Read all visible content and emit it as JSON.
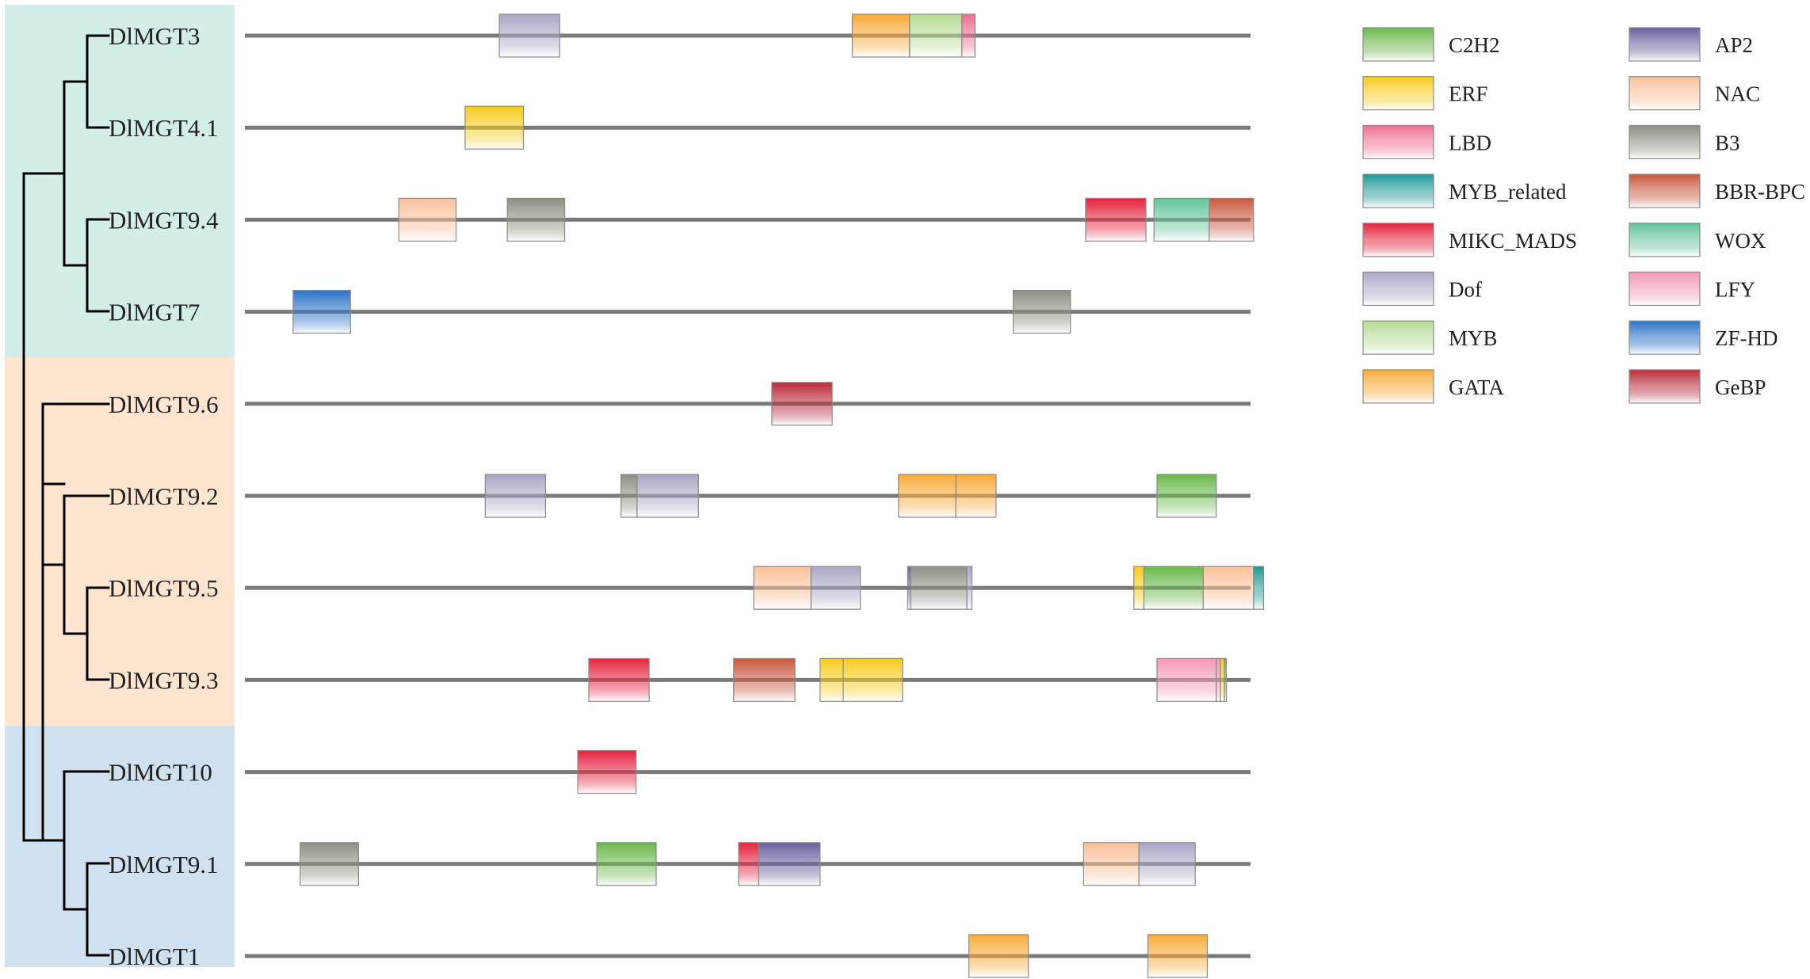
{
  "groups": [
    {
      "id": "group-1",
      "color": "#d3ede8",
      "genes": [
        0,
        1,
        2,
        3
      ]
    },
    {
      "id": "group-2",
      "color": "#fde5cf",
      "genes": [
        4,
        5,
        6,
        7
      ]
    },
    {
      "id": "group-3",
      "color": "#cfe0ee",
      "genes": [
        8,
        9,
        10
      ]
    }
  ],
  "genes": [
    {
      "name": "DlMGT3",
      "domains": [
        {
          "type": "Dof",
          "start": 0.253,
          "end": 0.313
        },
        {
          "type": "GATA",
          "start": 0.604,
          "end": 0.661
        },
        {
          "type": "MYB",
          "start": 0.661,
          "end": 0.713
        },
        {
          "type": "LBD",
          "start": 0.713,
          "end": 0.726
        }
      ]
    },
    {
      "name": "DlMGT4.1",
      "domains": [
        {
          "type": "ERF",
          "start": 0.219,
          "end": 0.277
        }
      ]
    },
    {
      "name": "DlMGT9.4",
      "domains": [
        {
          "type": "NAC",
          "start": 0.153,
          "end": 0.21
        },
        {
          "type": "B3",
          "start": 0.261,
          "end": 0.318
        },
        {
          "type": "MIKC_MADS",
          "start": 0.836,
          "end": 0.896
        },
        {
          "type": "WOX",
          "start": 0.904,
          "end": 0.959
        },
        {
          "type": "BBR-BPC",
          "start": 0.959,
          "end": 1.003
        }
      ]
    },
    {
      "name": "DlMGT7",
      "domains": [
        {
          "type": "ZF-HD",
          "start": 0.048,
          "end": 0.105
        },
        {
          "type": "B3",
          "start": 0.764,
          "end": 0.821
        }
      ]
    },
    {
      "name": "DlMGT9.6",
      "domains": [
        {
          "type": "GeBP",
          "start": 0.524,
          "end": 0.584
        }
      ]
    },
    {
      "name": "DlMGT9.2",
      "domains": [
        {
          "type": "Dof",
          "start": 0.239,
          "end": 0.299
        },
        {
          "type": "B3",
          "start": 0.374,
          "end": 0.39
        },
        {
          "type": "Dof",
          "start": 0.39,
          "end": 0.451
        },
        {
          "type": "GATA",
          "start": 0.65,
          "end": 0.707
        },
        {
          "type": "GATA",
          "start": 0.707,
          "end": 0.747
        },
        {
          "type": "C2H2",
          "start": 0.907,
          "end": 0.966
        }
      ]
    },
    {
      "name": "DlMGT9.5",
      "domains": [
        {
          "type": "NAC",
          "start": 0.506,
          "end": 0.563
        },
        {
          "type": "Dof",
          "start": 0.563,
          "end": 0.612
        },
        {
          "type": "AP2",
          "start": 0.659,
          "end": 0.662
        },
        {
          "type": "B3",
          "start": 0.662,
          "end": 0.718
        },
        {
          "type": "Dof",
          "start": 0.718,
          "end": 0.723
        },
        {
          "type": "ERF",
          "start": 0.884,
          "end": 0.894
        },
        {
          "type": "C2H2",
          "start": 0.894,
          "end": 0.953
        },
        {
          "type": "NAC",
          "start": 0.953,
          "end": 1.003
        },
        {
          "type": "MYB_related",
          "start": 1.003,
          "end": 1.013
        }
      ]
    },
    {
      "name": "DlMGT9.3",
      "domains": [
        {
          "type": "MIKC_MADS",
          "start": 0.342,
          "end": 0.402
        },
        {
          "type": "BBR-BPC",
          "start": 0.486,
          "end": 0.547
        },
        {
          "type": "ERF",
          "start": 0.572,
          "end": 0.595
        },
        {
          "type": "ERF",
          "start": 0.595,
          "end": 0.654
        },
        {
          "type": "LFY",
          "start": 0.907,
          "end": 0.966
        },
        {
          "type": "LFY",
          "start": 0.966,
          "end": 0.97
        },
        {
          "type": "ERF",
          "start": 0.97,
          "end": 0.974
        },
        {
          "type": "C2H2",
          "start": 0.974,
          "end": 0.976
        }
      ]
    },
    {
      "name": "DlMGT10",
      "domains": [
        {
          "type": "MIKC_MADS",
          "start": 0.331,
          "end": 0.389
        }
      ]
    },
    {
      "name": "DlMGT9.1",
      "domains": [
        {
          "type": "B3",
          "start": 0.055,
          "end": 0.113
        },
        {
          "type": "C2H2",
          "start": 0.35,
          "end": 0.409
        },
        {
          "type": "MIKC_MADS",
          "start": 0.491,
          "end": 0.511
        },
        {
          "type": "AP2",
          "start": 0.511,
          "end": 0.572
        },
        {
          "type": "NAC",
          "start": 0.834,
          "end": 0.889
        },
        {
          "type": "Dof",
          "start": 0.889,
          "end": 0.945
        }
      ]
    },
    {
      "name": "DlMGT1",
      "domains": [
        {
          "type": "GATA",
          "start": 0.72,
          "end": 0.779
        },
        {
          "type": "GATA",
          "start": 0.898,
          "end": 0.957
        }
      ]
    }
  ],
  "legend": [
    {
      "name": "C2H2",
      "color": "#6ab84a"
    },
    {
      "name": "ERF",
      "color": "#f6cc1a"
    },
    {
      "name": "LBD",
      "color": "#ef6f90"
    },
    {
      "name": "MYB_related",
      "color": "#1f9a94"
    },
    {
      "name": "MIKC_MADS",
      "color": "#e6223e"
    },
    {
      "name": "Dof",
      "color": "#a9a7c4"
    },
    {
      "name": "MYB",
      "color": "#b6dc94"
    },
    {
      "name": "GATA",
      "color": "#f9aa38"
    },
    {
      "name": "AP2",
      "color": "#6a5f9e"
    },
    {
      "name": "NAC",
      "color": "#f9c19a"
    },
    {
      "name": "B3",
      "color": "#8c8f80"
    },
    {
      "name": "BBR-BPC",
      "color": "#c9573d"
    },
    {
      "name": "WOX",
      "color": "#61c49a"
    },
    {
      "name": "LFY",
      "color": "#f398b4"
    },
    {
      "name": "ZF-HD",
      "color": "#2d73c6"
    },
    {
      "name": "GeBP",
      "color": "#bb2b3b"
    }
  ],
  "styles": {
    "line_color": "#7a7a7a",
    "tree_color": "#000000"
  }
}
